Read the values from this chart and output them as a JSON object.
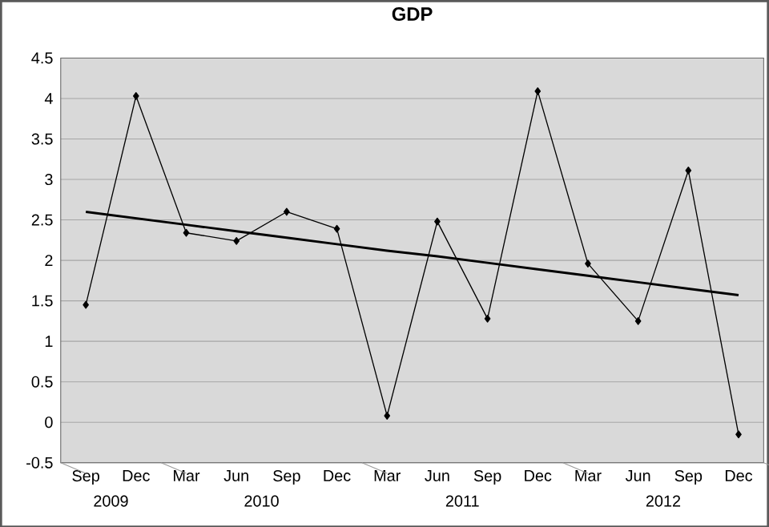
{
  "chart_data": {
    "type": "line",
    "title": "GDP",
    "categories": [
      "Sep",
      "Dec",
      "Mar",
      "Jun",
      "Sep",
      "Dec",
      "Mar",
      "Jun",
      "Sep",
      "Dec",
      "Mar",
      "Jun",
      "Sep",
      "Dec"
    ],
    "series": [
      {
        "color": "#000000",
        "marker": "diamond",
        "values": [
          1.45,
          4.03,
          2.34,
          2.24,
          2.6,
          2.39,
          0.08,
          2.48,
          1.28,
          4.09,
          1.96,
          1.25,
          3.11,
          -0.15
        ]
      },
      {
        "type": "line",
        "color": "#000000",
        "marker": "none",
        "values": [
          2.6,
          2.52,
          2.44,
          2.36,
          2.28,
          2.2,
          2.12,
          2.05,
          1.97,
          1.89,
          1.81,
          1.73,
          1.65,
          1.57
        ]
      }
    ],
    "ylim": [
      -0.5,
      4.5
    ],
    "yticks": [
      -0.5,
      0,
      0.5,
      1,
      1.5,
      2,
      2.5,
      3,
      3.5,
      4,
      4.5
    ],
    "grid": "y",
    "annotations": [
      "2009",
      "2010",
      "2011",
      "2012"
    ]
  }
}
